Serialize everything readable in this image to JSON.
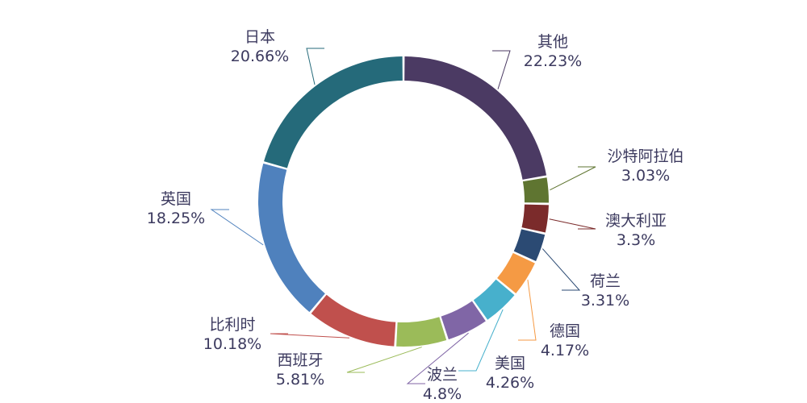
{
  "chart_data": {
    "type": "pie",
    "variant": "donut",
    "title": "",
    "legend": "none",
    "series": [
      {
        "name": "",
        "slices": [
          {
            "label": "其他",
            "value_text": "22.23%",
            "value": 22.23,
            "color": "#4b3a63"
          },
          {
            "label": "沙特阿拉伯",
            "value_text": "3.03%",
            "value": 3.03,
            "color": "#5f7531"
          },
          {
            "label": "澳大利亚",
            "value_text": "3.3%",
            "value": 3.3,
            "color": "#7b2b2b"
          },
          {
            "label": "荷兰",
            "value_text": "3.31%",
            "value": 3.31,
            "color": "#2b4a73"
          },
          {
            "label": "德国",
            "value_text": "4.17%",
            "value": 4.17,
            "color": "#f59a44"
          },
          {
            "label": "美国",
            "value_text": "4.26%",
            "value": 4.26,
            "color": "#47b0cc"
          },
          {
            "label": "波兰",
            "value_text": "4.8%",
            "value": 4.8,
            "color": "#8066a6"
          },
          {
            "label": "西班牙",
            "value_text": "5.81%",
            "value": 5.81,
            "color": "#9bbb59"
          },
          {
            "label": "比利时",
            "value_text": "10.18%",
            "value": 10.18,
            "color": "#c0504d"
          },
          {
            "label": "英国",
            "value_text": "18.25%",
            "value": 18.25,
            "color": "#4f81bd"
          },
          {
            "label": "日本",
            "value_text": "20.66%",
            "value": 20.66,
            "color": "#256a7a"
          }
        ]
      }
    ]
  }
}
